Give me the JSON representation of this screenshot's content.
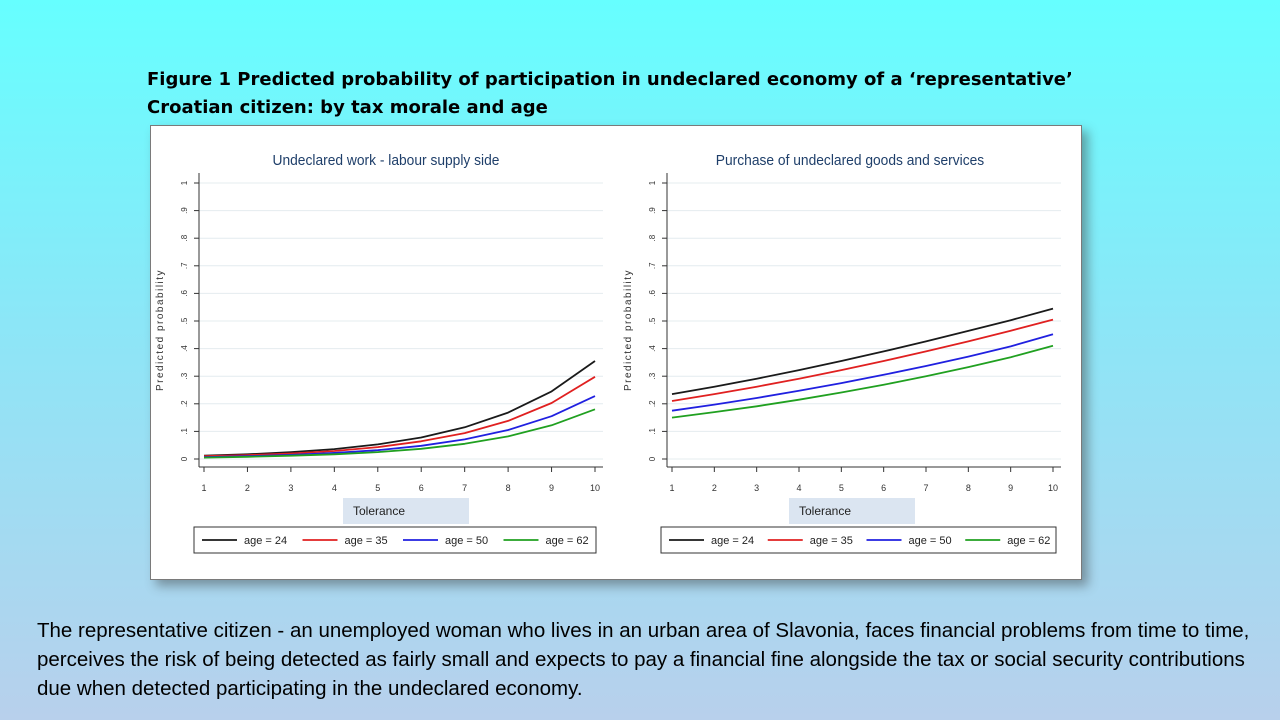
{
  "figure_title": {
    "line1": "Figure 1  Predicted probability of participation in undeclared economy of a ‘representative’",
    "line2": "Croatian citizen: by tax morale and age"
  },
  "caption": "The representative citizen - an unemployed woman who lives in an urban area of Slavonia, faces financial problems from time to time, perceives the risk of being detected as fairly small and expects to pay a financial fine alongside the tax or social security contributions due when detected participating in the undeclared economy.",
  "chart_data": [
    {
      "type": "line",
      "title": "Undeclared work - labour supply side",
      "xlabel": "Tolerance",
      "ylabel": "Predicted probability",
      "x": [
        1,
        2,
        3,
        4,
        5,
        6,
        7,
        8,
        9,
        10
      ],
      "xlim": [
        1,
        10
      ],
      "ylim": [
        0,
        1
      ],
      "yticks": [
        "0",
        ".1",
        ".2",
        ".3",
        ".4",
        ".5",
        ".6",
        ".7",
        ".8",
        ".9",
        "1"
      ],
      "xticks": [
        "1",
        "2",
        "3",
        "4",
        "5",
        "6",
        "7",
        "8",
        "9",
        "10"
      ],
      "grid": true,
      "legend_position": "bottom",
      "series": [
        {
          "name": "age = 24",
          "color": "#1a1a1a",
          "values": [
            0.012,
            0.017,
            0.025,
            0.036,
            0.053,
            0.078,
            0.115,
            0.168,
            0.245,
            0.355
          ]
        },
        {
          "name": "age = 35",
          "color": "#e02020",
          "values": [
            0.01,
            0.014,
            0.02,
            0.029,
            0.043,
            0.064,
            0.094,
            0.138,
            0.203,
            0.298
          ]
        },
        {
          "name": "age = 50",
          "color": "#2020e0",
          "values": [
            0.007,
            0.01,
            0.015,
            0.022,
            0.032,
            0.048,
            0.071,
            0.105,
            0.155,
            0.228
          ]
        },
        {
          "name": "age = 62",
          "color": "#20a020",
          "values": [
            0.005,
            0.008,
            0.012,
            0.017,
            0.025,
            0.037,
            0.055,
            0.082,
            0.122,
            0.18
          ]
        }
      ]
    },
    {
      "type": "line",
      "title": "Purchase of undeclared goods and services",
      "xlabel": "Tolerance",
      "ylabel": "Predicted probability",
      "x": [
        1,
        2,
        3,
        4,
        5,
        6,
        7,
        8,
        9,
        10
      ],
      "xlim": [
        1,
        10
      ],
      "ylim": [
        0,
        1
      ],
      "yticks": [
        "0",
        ".1",
        ".2",
        ".3",
        ".4",
        ".5",
        ".6",
        ".7",
        ".8",
        ".9",
        "1"
      ],
      "xticks": [
        "1",
        "2",
        "3",
        "4",
        "5",
        "6",
        "7",
        "8",
        "9",
        "10"
      ],
      "grid": true,
      "legend_position": "bottom",
      "series": [
        {
          "name": "age = 24",
          "color": "#1a1a1a",
          "values": [
            0.235,
            0.262,
            0.291,
            0.322,
            0.355,
            0.39,
            0.426,
            0.464,
            0.503,
            0.545
          ]
        },
        {
          "name": "age = 35",
          "color": "#e02020",
          "values": [
            0.21,
            0.235,
            0.262,
            0.291,
            0.322,
            0.355,
            0.39,
            0.426,
            0.465,
            0.505
          ]
        },
        {
          "name": "age = 50",
          "color": "#2020e0",
          "values": [
            0.175,
            0.197,
            0.221,
            0.247,
            0.275,
            0.305,
            0.337,
            0.371,
            0.408,
            0.452
          ]
        },
        {
          "name": "age = 62",
          "color": "#20a020",
          "values": [
            0.15,
            0.17,
            0.191,
            0.215,
            0.241,
            0.269,
            0.3,
            0.333,
            0.369,
            0.41
          ]
        }
      ]
    }
  ]
}
